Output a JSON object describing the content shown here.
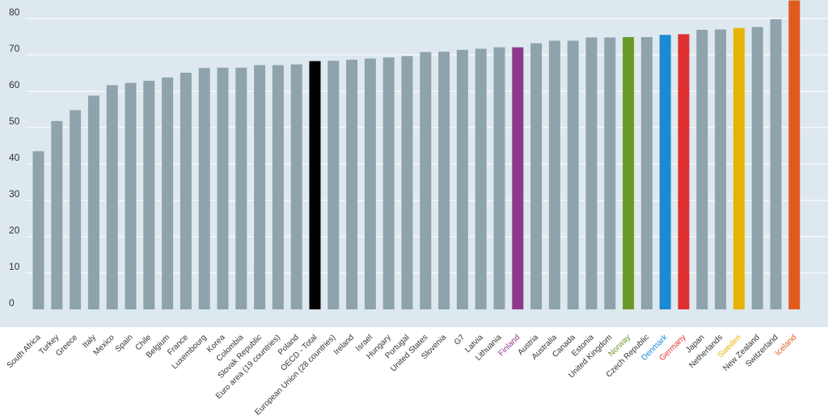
{
  "chart_data": {
    "type": "bar",
    "title": "",
    "xlabel": "",
    "ylabel": "",
    "ylim": [
      0,
      85
    ],
    "yticks": [
      0,
      10,
      20,
      30,
      40,
      50,
      60,
      70,
      80
    ],
    "grid": true,
    "categories": [
      "South Africa",
      "Turkey",
      "Greece",
      "Italy",
      "Mexico",
      "Spain",
      "Chile",
      "Belgium",
      "France",
      "Luxembourg",
      "Korea",
      "Colombia",
      "Slovak Republic",
      "Euro area (19 countries)",
      "Poland",
      "OECD - Total",
      "European Union (28 countries)",
      "Ireland",
      "Israel",
      "Hungary",
      "Portugal",
      "United States",
      "Slovenia",
      "G7",
      "Latvia",
      "Lithuania",
      "Finland",
      "Austria",
      "Australia",
      "Canada",
      "Estonia",
      "United Kingdom",
      "Norway",
      "Czech Republic",
      "Denmark",
      "Germany",
      "Japan",
      "Netherlands",
      "Sweden",
      "New Zealand",
      "Switzerland",
      "Iceland"
    ],
    "values": [
      43.5,
      51.8,
      54.8,
      58.8,
      61.7,
      62.3,
      62.9,
      63.8,
      65.1,
      66.4,
      66.5,
      66.5,
      67.2,
      67.2,
      67.4,
      68.3,
      68.4,
      68.7,
      69,
      69.3,
      69.7,
      70.8,
      70.9,
      71.4,
      71.7,
      72.1,
      72.1,
      73.2,
      73.9,
      73.9,
      74.8,
      74.8,
      74.9,
      74.9,
      75.5,
      75.7,
      76.9,
      77,
      77.4,
      77.7,
      79.8,
      85
    ],
    "colors": {
      "default": "#8fa3ad",
      "highlight": {
        "OECD - Total": "#000000",
        "Finland": "#8c3a8c",
        "Norway": "#6a9a2a",
        "Denmark": "#1a8ad4",
        "Germany": "#e03030",
        "Sweden": "#e6b400",
        "Iceland": "#e05a1e"
      },
      "plot_background": "#dde8ef",
      "gridline": "#ffffff",
      "label_default": "#333333"
    }
  }
}
